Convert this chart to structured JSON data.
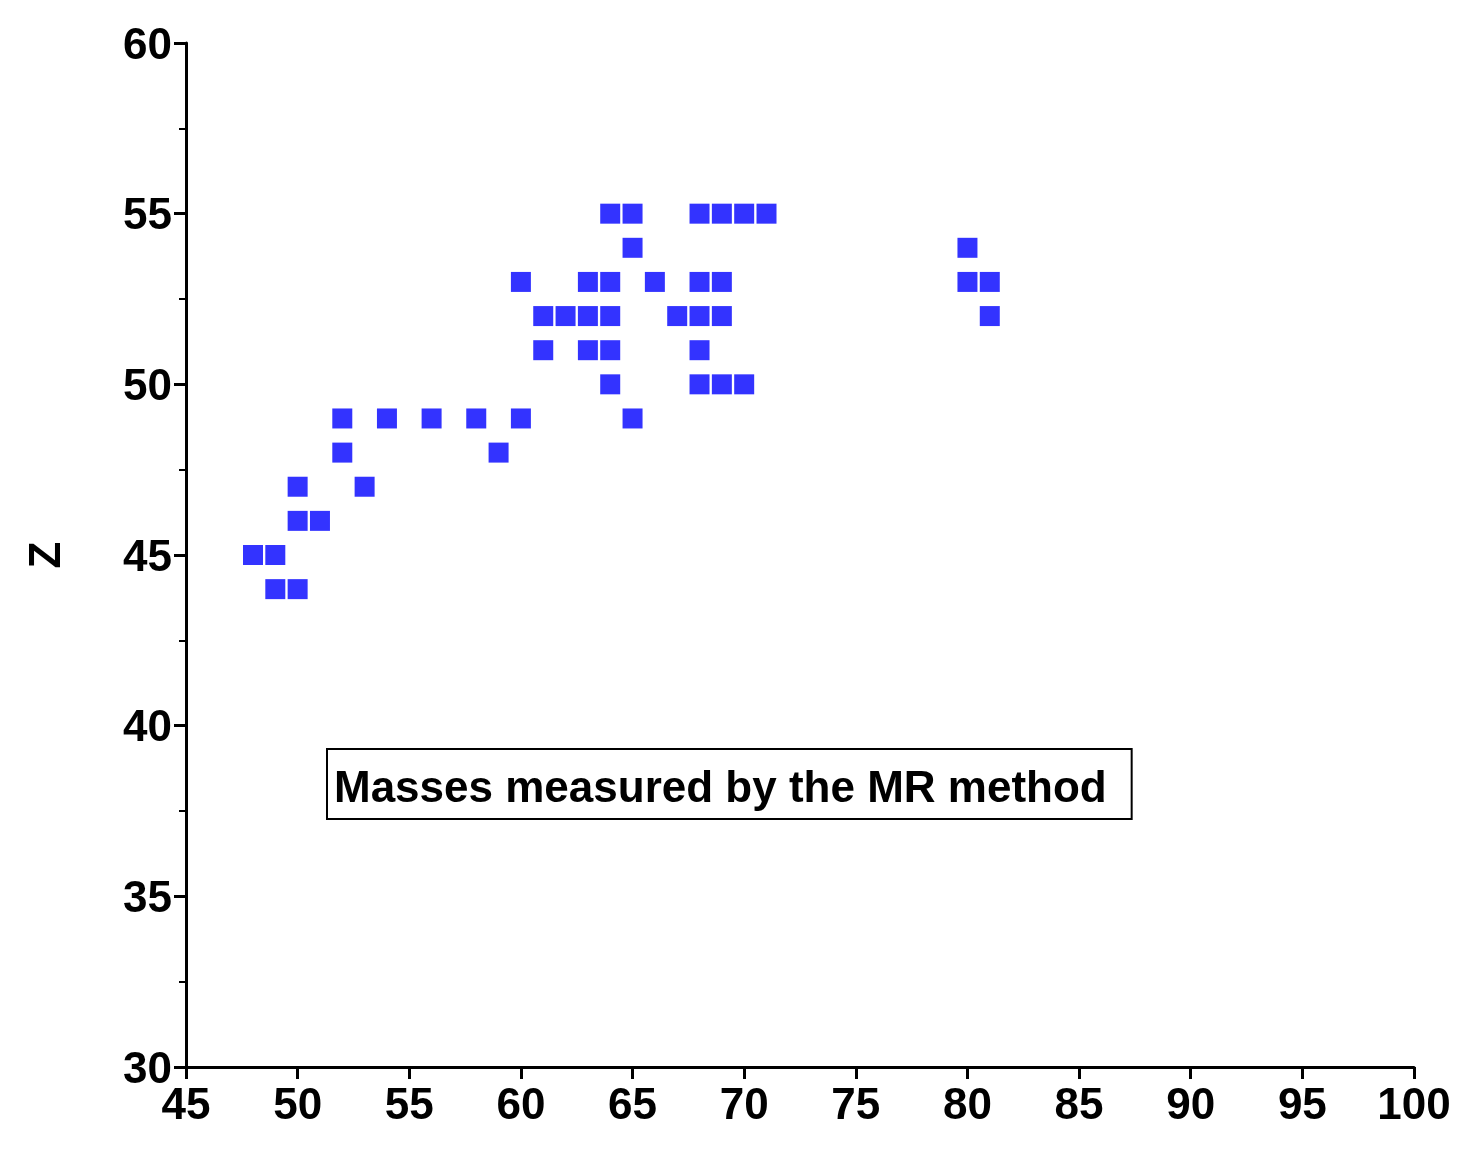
{
  "chart_data": {
    "type": "scatter",
    "ylabel": "Z",
    "marker": "square",
    "grid": false,
    "xlim": [
      45,
      100
    ],
    "xticks": [
      45,
      50,
      55,
      60,
      65,
      70,
      75,
      80,
      85,
      90,
      95,
      100
    ],
    "ylim": [
      30,
      60
    ],
    "yticks": [
      30,
      35,
      40,
      45,
      50,
      55,
      60
    ],
    "annotations": [
      "Masses measured by the MR method"
    ],
    "series": [
      {
        "color": "#0000ff",
        "x": [
          48,
          49,
          49,
          50,
          50,
          50,
          51,
          52,
          54,
          56,
          58,
          60,
          65,
          52,
          59,
          53,
          60,
          63,
          64,
          66,
          68,
          69,
          80,
          81,
          61,
          62,
          63,
          64,
          67,
          68,
          69,
          81,
          61,
          63,
          64,
          68,
          64,
          68,
          69,
          70,
          64,
          65,
          68,
          69,
          70,
          71,
          65,
          80
        ],
        "values": [
          45,
          45,
          44,
          44,
          47,
          46,
          46,
          49,
          49,
          49,
          49,
          49,
          49,
          48,
          48,
          47,
          53,
          53,
          53,
          53,
          53,
          53,
          53,
          53,
          52,
          52,
          52,
          52,
          52,
          52,
          52,
          52,
          51,
          51,
          51,
          51,
          50,
          50,
          50,
          50,
          55,
          55,
          55,
          55,
          55,
          55,
          54,
          54
        ]
      }
    ]
  }
}
